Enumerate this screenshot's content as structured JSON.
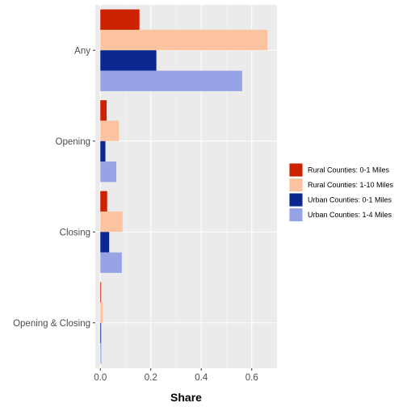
{
  "chart_data": {
    "type": "bar",
    "orientation": "horizontal",
    "categories": [
      "Any",
      "Opening",
      "Closing",
      "Opening & Closing"
    ],
    "series": [
      {
        "name": "Rural Counties: 0-1 Miles",
        "color": "#cc2200",
        "values": [
          0.155,
          0.025,
          0.027,
          0.003
        ]
      },
      {
        "name": "Rural Counties: 1-10 Miles",
        "color": "#fcc3a0",
        "values": [
          0.662,
          0.074,
          0.088,
          0.01
        ]
      },
      {
        "name": "Urban Counties: 0-1 Miles",
        "color": "#0a2890",
        "values": [
          0.222,
          0.02,
          0.035,
          0.003
        ]
      },
      {
        "name": "Urban Counties: 1-4 Miles",
        "color": "#96a4e6",
        "values": [
          0.562,
          0.063,
          0.085,
          0.004
        ]
      }
    ],
    "xlabel": "Share",
    "ylabel": "",
    "xlim": [
      -0.02,
      0.7
    ],
    "xticks": [
      0.0,
      0.2,
      0.4,
      0.6
    ],
    "xtick_labels": [
      "0.0",
      "0.2",
      "0.4",
      "0.6"
    ],
    "grid": true,
    "legend_position": "right",
    "panel_background": "#ebebeb",
    "grid_color": "#ffffff"
  }
}
